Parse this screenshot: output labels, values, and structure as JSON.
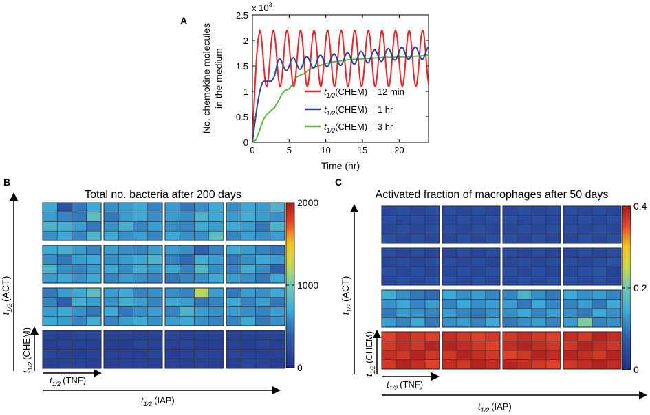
{
  "panels": {
    "a": {
      "label": "A"
    },
    "b": {
      "label": "B"
    },
    "c": {
      "label": "C"
    }
  },
  "chart_data": [
    {
      "id": "A",
      "type": "line",
      "title": "",
      "xlabel": "Time (hr)",
      "ylabel_line1": "No. chemokine molecules",
      "ylabel_line2": "in the medium",
      "y_multiplier": "x 10",
      "y_multiplier_exp": "3",
      "xlim": [
        0,
        24
      ],
      "ylim": [
        0,
        2.5
      ],
      "xticks": [
        "0",
        "5",
        "10",
        "15",
        "20"
      ],
      "yticks": [
        "0",
        "0.5",
        "1",
        "1.5",
        "2",
        "2.5"
      ],
      "legend_position": "lower-right",
      "series": [
        {
          "name": "t1/2(CHEM) = 12 min",
          "legend_main": "t",
          "legend_sub": "1/2",
          "legend_rest": "(CHEM) = 12 min",
          "color": "#e8262b",
          "mean_level": 1.65,
          "oscillation_amplitude": 0.55,
          "oscillation_period_hr": 1.85,
          "first_peak": 2.15,
          "first_peak_time": 1.0
        },
        {
          "name": "t1/2(CHEM) = 1 hr",
          "legend_main": "t",
          "legend_sub": "1/2",
          "legend_rest": "(CHEM) = 1 hr",
          "color": "#23479c",
          "start_level": 1.5,
          "end_level": 1.75,
          "oscillation_amplitude": 0.12,
          "oscillation_period_hr": 1.85,
          "plateau": 1.2
        },
        {
          "name": "t1/2(CHEM) = 3 hr",
          "legend_main": "t",
          "legend_sub": "1/2",
          "legend_rest": "(CHEM) = 3 hr",
          "color": "#5ab946",
          "points": [
            [
              0,
              0
            ],
            [
              0.5,
              0.05
            ],
            [
              1,
              0.25
            ],
            [
              1.5,
              0.45
            ],
            [
              2,
              0.55
            ],
            [
              2.5,
              0.62
            ],
            [
              3,
              0.68
            ],
            [
              3.5,
              0.8
            ],
            [
              4,
              0.95
            ],
            [
              4.5,
              1.02
            ],
            [
              5,
              1.05
            ],
            [
              5.5,
              1.15
            ],
            [
              6,
              1.28
            ],
            [
              6.5,
              1.32
            ],
            [
              7,
              1.35
            ],
            [
              7.5,
              1.4
            ],
            [
              8,
              1.45
            ],
            [
              9,
              1.5
            ],
            [
              10,
              1.55
            ],
            [
              11,
              1.58
            ],
            [
              12,
              1.6
            ],
            [
              13,
              1.62
            ],
            [
              14,
              1.63
            ],
            [
              15,
              1.64
            ],
            [
              16,
              1.65
            ],
            [
              17,
              1.66
            ],
            [
              18,
              1.67
            ],
            [
              19,
              1.67
            ],
            [
              20,
              1.68
            ],
            [
              21,
              1.68
            ],
            [
              22,
              1.69
            ],
            [
              23,
              1.7
            ],
            [
              24,
              1.72
            ]
          ]
        }
      ]
    },
    {
      "id": "B",
      "type": "heatmap",
      "title": "Total no. bacteria after 200 days",
      "yaxis_main": "t",
      "yaxis_sub": "1/2",
      "yaxis_outer_rest": "(ACT)",
      "yaxis_inner_rest": "(CHEM)",
      "xaxis_inner_rest": "(TNF)",
      "xaxis_outer_rest": "(IAP)",
      "colorbar_ticks": [
        "0",
        "1000",
        "2000"
      ],
      "colorbar_range": [
        0,
        2000
      ],
      "grid": "4x4 blocks of 4x4 cells",
      "values": [
        [
          [
            700,
            300,
            500,
            700
          ],
          [
            650,
            550,
            500,
            900
          ],
          [
            800,
            750,
            650,
            500
          ],
          [
            600,
            700,
            550,
            800
          ],
          [
            600,
            650,
            700,
            550
          ],
          [
            500,
            650,
            700,
            600
          ],
          [
            600,
            750,
            550,
            650
          ],
          [
            700,
            600,
            650,
            550
          ],
          [
            650,
            500,
            600,
            700
          ],
          [
            650,
            600,
            800,
            700
          ],
          [
            600,
            550,
            700,
            650
          ],
          [
            700,
            600,
            600,
            900
          ],
          [
            600,
            700,
            650,
            800
          ],
          [
            650,
            750,
            650,
            600
          ],
          [
            700,
            650,
            500,
            800
          ],
          [
            550,
            650,
            600,
            650
          ]
        ],
        [
          [
            700,
            750,
            650,
            550
          ],
          [
            600,
            500,
            650,
            700
          ],
          [
            800,
            600,
            550,
            650
          ],
          [
            650,
            700,
            600,
            700
          ],
          [
            650,
            600,
            550,
            650
          ],
          [
            600,
            650,
            700,
            800
          ],
          [
            700,
            600,
            750,
            650
          ],
          [
            550,
            650,
            600,
            550
          ],
          [
            650,
            600,
            400,
            550
          ],
          [
            550,
            450,
            750,
            650
          ],
          [
            700,
            550,
            850,
            600
          ],
          [
            500,
            550,
            600,
            700
          ],
          [
            700,
            650,
            550,
            500
          ],
          [
            500,
            600,
            700,
            650
          ],
          [
            550,
            750,
            600,
            400
          ],
          [
            650,
            600,
            500,
            700
          ]
        ],
        [
          [
            500,
            650,
            700,
            900
          ],
          [
            550,
            400,
            750,
            650
          ],
          [
            650,
            700,
            600,
            500
          ],
          [
            700,
            650,
            550,
            750
          ],
          [
            650,
            700,
            550,
            600
          ],
          [
            600,
            750,
            650,
            550
          ],
          [
            700,
            500,
            600,
            650
          ],
          [
            550,
            650,
            700,
            600
          ],
          [
            600,
            550,
            1200,
            650
          ],
          [
            700,
            650,
            500,
            550
          ],
          [
            550,
            800,
            650,
            600
          ],
          [
            650,
            700,
            600,
            550
          ],
          [
            500,
            650,
            600,
            700
          ],
          [
            700,
            550,
            650,
            500
          ],
          [
            650,
            600,
            550,
            650
          ],
          [
            550,
            700,
            500,
            600
          ]
        ],
        [
          [
            150,
            120,
            180,
            200
          ],
          [
            130,
            150,
            160,
            140
          ],
          [
            170,
            140,
            120,
            150
          ],
          [
            140,
            160,
            150,
            130
          ],
          [
            150,
            170,
            140,
            160
          ],
          [
            130,
            120,
            180,
            150
          ],
          [
            160,
            150,
            130,
            170
          ],
          [
            140,
            160,
            150,
            120
          ],
          [
            170,
            140,
            160,
            150
          ],
          [
            150,
            180,
            130,
            140
          ],
          [
            120,
            150,
            170,
            160
          ],
          [
            160,
            130,
            150,
            140
          ],
          [
            140,
            160,
            150,
            170
          ],
          [
            150,
            130,
            180,
            140
          ],
          [
            170,
            150,
            140,
            160
          ],
          [
            130,
            170,
            150,
            120
          ]
        ]
      ]
    },
    {
      "id": "C",
      "type": "heatmap",
      "title": "Activated fraction of macrophages after 50 days",
      "yaxis_main": "t",
      "yaxis_sub": "1/2",
      "yaxis_outer_rest": "(ACT)",
      "yaxis_inner_rest": "(CHEM)",
      "xaxis_inner_rest": "(TNF)",
      "xaxis_outer_rest": "(IAP)",
      "colorbar_ticks": [
        "0",
        "0.2",
        "0.4"
      ],
      "colorbar_range": [
        0,
        0.4
      ],
      "grid": "4x4 blocks of 4x4 cells",
      "values": [
        [
          [
            0.04,
            0.05,
            0.04,
            0.05
          ],
          [
            0.05,
            0.04,
            0.05,
            0.04
          ],
          [
            0.04,
            0.05,
            0.04,
            0.05
          ],
          [
            0.05,
            0.04,
            0.05,
            0.04
          ],
          [
            0.05,
            0.04,
            0.05,
            0.04
          ],
          [
            0.04,
            0.05,
            0.04,
            0.05
          ],
          [
            0.05,
            0.04,
            0.05,
            0.04
          ],
          [
            0.04,
            0.05,
            0.04,
            0.05
          ],
          [
            0.04,
            0.05,
            0.04,
            0.05
          ],
          [
            0.05,
            0.04,
            0.05,
            0.04
          ],
          [
            0.04,
            0.05,
            0.04,
            0.05
          ],
          [
            0.05,
            0.04,
            0.05,
            0.04
          ],
          [
            0.05,
            0.04,
            0.05,
            0.04
          ],
          [
            0.04,
            0.05,
            0.04,
            0.05
          ],
          [
            0.05,
            0.04,
            0.05,
            0.04
          ],
          [
            0.04,
            0.05,
            0.04,
            0.05
          ]
        ],
        [
          [
            0.05,
            0.04,
            0.05,
            0.04
          ],
          [
            0.04,
            0.05,
            0.04,
            0.05
          ],
          [
            0.05,
            0.04,
            0.05,
            0.04
          ],
          [
            0.04,
            0.05,
            0.04,
            0.05
          ],
          [
            0.04,
            0.05,
            0.04,
            0.05
          ],
          [
            0.05,
            0.04,
            0.05,
            0.04
          ],
          [
            0.04,
            0.05,
            0.04,
            0.05
          ],
          [
            0.05,
            0.04,
            0.05,
            0.04
          ],
          [
            0.05,
            0.04,
            0.05,
            0.04
          ],
          [
            0.04,
            0.05,
            0.04,
            0.05
          ],
          [
            0.05,
            0.04,
            0.05,
            0.04
          ],
          [
            0.04,
            0.05,
            0.04,
            0.05
          ],
          [
            0.04,
            0.05,
            0.04,
            0.05
          ],
          [
            0.05,
            0.04,
            0.05,
            0.06
          ],
          [
            0.04,
            0.05,
            0.06,
            0.03
          ],
          [
            0.05,
            0.04,
            0.05,
            0.04
          ]
        ],
        [
          [
            0.15,
            0.12,
            0.1,
            0.09
          ],
          [
            0.12,
            0.14,
            0.11,
            0.13
          ],
          [
            0.1,
            0.13,
            0.12,
            0.11
          ],
          [
            0.13,
            0.11,
            0.14,
            0.1
          ],
          [
            0.14,
            0.12,
            0.13,
            0.11
          ],
          [
            0.11,
            0.14,
            0.12,
            0.13
          ],
          [
            0.13,
            0.11,
            0.1,
            0.12
          ],
          [
            0.12,
            0.13,
            0.11,
            0.14
          ],
          [
            0.11,
            0.16,
            0.12,
            0.1
          ],
          [
            0.13,
            0.1,
            0.14,
            0.11
          ],
          [
            0.12,
            0.14,
            0.11,
            0.13
          ],
          [
            0.1,
            0.12,
            0.13,
            0.11
          ],
          [
            0.14,
            0.12,
            0.13,
            0.11
          ],
          [
            0.11,
            0.13,
            0.1,
            0.14
          ],
          [
            0.12,
            0.1,
            0.14,
            0.12
          ],
          [
            0.13,
            0.21,
            0.11,
            0.12
          ]
        ],
        [
          [
            0.36,
            0.38,
            0.37,
            0.36
          ],
          [
            0.37,
            0.38,
            0.37,
            0.39
          ],
          [
            0.38,
            0.37,
            0.39,
            0.37
          ],
          [
            0.37,
            0.39,
            0.38,
            0.36
          ],
          [
            0.38,
            0.37,
            0.36,
            0.37
          ],
          [
            0.39,
            0.38,
            0.37,
            0.36
          ],
          [
            0.37,
            0.39,
            0.38,
            0.37
          ],
          [
            0.38,
            0.37,
            0.39,
            0.38
          ],
          [
            0.37,
            0.38,
            0.37,
            0.36
          ],
          [
            0.38,
            0.39,
            0.38,
            0.37
          ],
          [
            0.36,
            0.37,
            0.39,
            0.38
          ],
          [
            0.39,
            0.38,
            0.37,
            0.36
          ],
          [
            0.38,
            0.37,
            0.39,
            0.38
          ],
          [
            0.37,
            0.39,
            0.38,
            0.37
          ],
          [
            0.39,
            0.38,
            0.37,
            0.39
          ],
          [
            0.37,
            0.38,
            0.39,
            0.38
          ]
        ]
      ]
    }
  ]
}
